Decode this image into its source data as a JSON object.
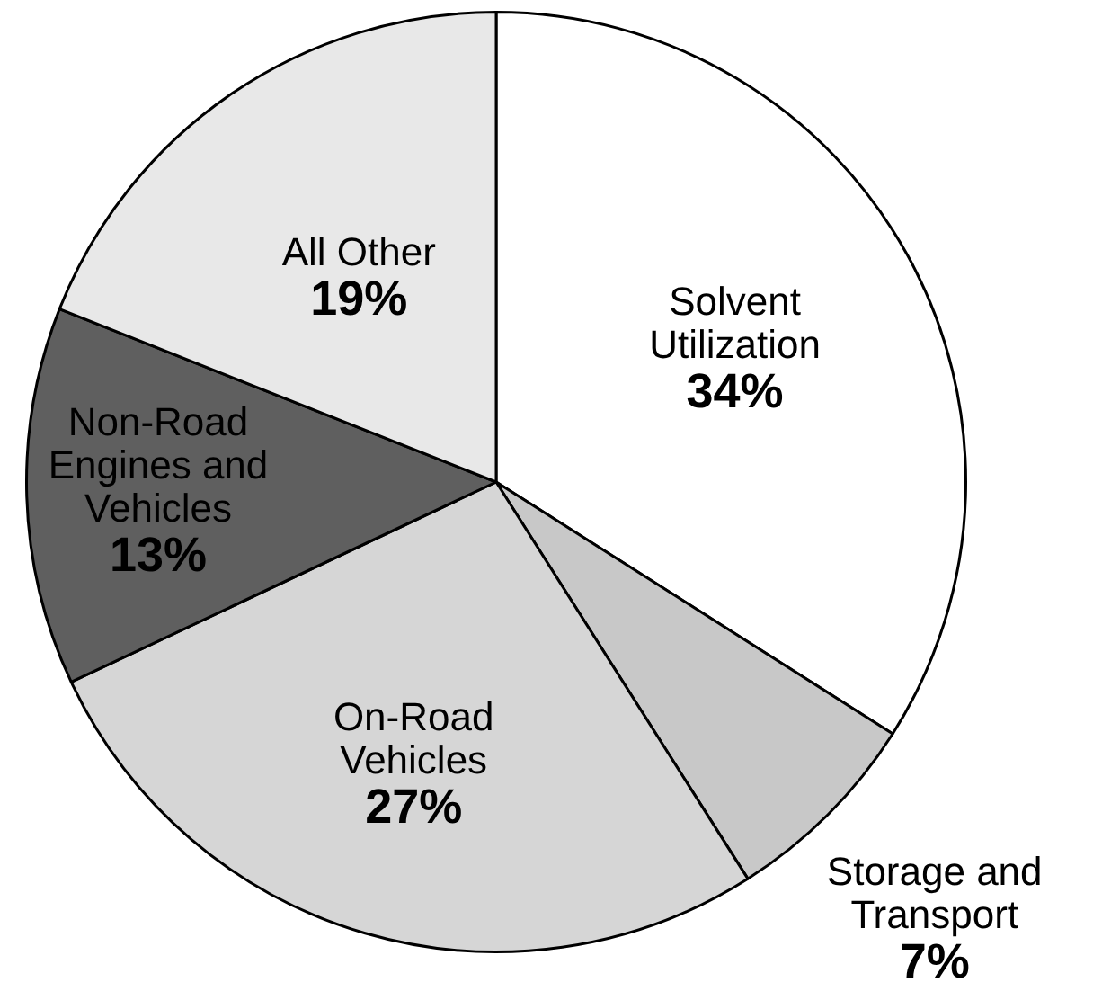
{
  "chart_data": {
    "type": "pie",
    "categories": [
      "Solvent Utilization",
      "Storage and Transport",
      "On-Road Vehicles",
      "Non-Road Engines and Vehicles",
      "All Other"
    ],
    "values": [
      34,
      7,
      27,
      13,
      19
    ],
    "colors": [
      "#ffffff",
      "#c8c8c8",
      "#d6d6d6",
      "#5f5f5f",
      "#e8e8e8"
    ],
    "value_labels": [
      "34%",
      "7%",
      "27%",
      "13%",
      "19%"
    ],
    "legend": false
  }
}
